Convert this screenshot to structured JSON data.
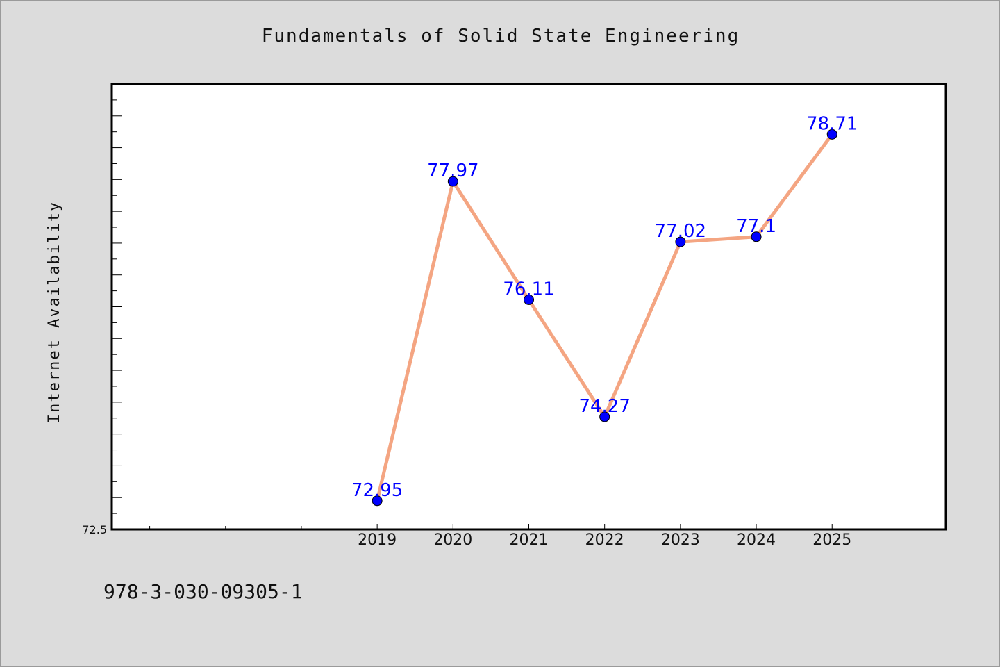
{
  "chart_data": {
    "type": "line",
    "title": "Fundamentals of Solid State Engineering",
    "ylabel": "Internet Availability",
    "xlabel": "",
    "x": [
      2019,
      2020,
      2021,
      2022,
      2023,
      2024,
      2025
    ],
    "series": [
      {
        "values": [
          72.95,
          77.97,
          76.11,
          74.27,
          77.02,
          77.1,
          78.71
        ],
        "labels": [
          "72.95",
          "77.97",
          "76.11",
          "74.27",
          "77.02",
          "77.1",
          "78.71"
        ]
      }
    ],
    "xlim": [
      2015.5,
      2026.5
    ],
    "ylim": [
      72.5,
      79.5
    ],
    "ytick_label": "72.5",
    "grid": false,
    "line_color": "#f4a582",
    "marker_color": "#0000ff",
    "label_color": "#0000ff"
  },
  "footer": {
    "isbn": "978-3-030-09305-1"
  }
}
